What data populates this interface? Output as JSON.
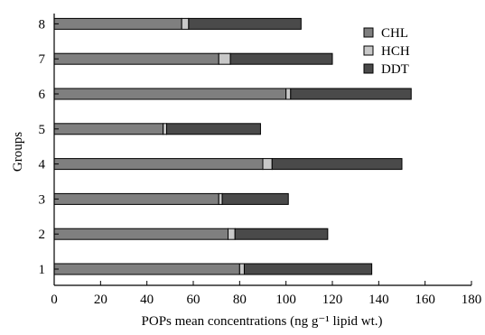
{
  "chart_data": {
    "type": "bar",
    "orientation": "horizontal",
    "stacked": true,
    "categories": [
      "1",
      "2",
      "3",
      "4",
      "5",
      "6",
      "7",
      "8"
    ],
    "series": [
      {
        "name": "CHL",
        "color": "#7f7f7f",
        "values": [
          80,
          75,
          71,
          90,
          47,
          100,
          71,
          55
        ]
      },
      {
        "name": "HCH",
        "color": "#c8c8c8",
        "values": [
          2,
          3,
          1.5,
          4,
          1.5,
          2,
          5,
          3
        ]
      },
      {
        "name": "DDT",
        "color": "#4a4a4a",
        "values": [
          55,
          40,
          28.5,
          56,
          40.5,
          52,
          44,
          48.5
        ]
      }
    ],
    "xlabel": "POPs mean concentrations (ng g⁻¹ lipid wt.)",
    "ylabel": "Groups",
    "xlim": [
      0,
      180
    ],
    "xticks": [
      0,
      20,
      40,
      60,
      80,
      100,
      120,
      140,
      160,
      180
    ],
    "grid": false,
    "legend_position": "top-right"
  }
}
